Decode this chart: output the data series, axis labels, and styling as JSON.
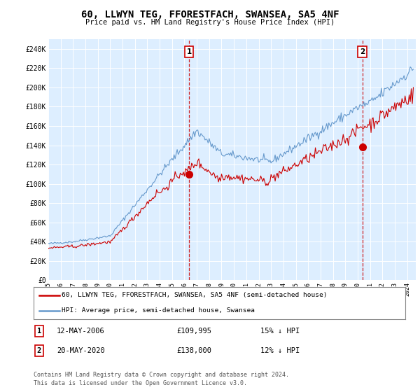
{
  "title": "60, LLWYN TEG, FFORESTFACH, SWANSEA, SA5 4NF",
  "subtitle": "Price paid vs. HM Land Registry's House Price Index (HPI)",
  "ylabel_ticks": [
    "£0",
    "£20K",
    "£40K",
    "£60K",
    "£80K",
    "£100K",
    "£120K",
    "£140K",
    "£160K",
    "£180K",
    "£200K",
    "£220K",
    "£240K"
  ],
  "ytick_values": [
    0,
    20000,
    40000,
    60000,
    80000,
    100000,
    120000,
    140000,
    160000,
    180000,
    200000,
    220000,
    240000
  ],
  "ylim": [
    0,
    250000
  ],
  "sale1_date": "12-MAY-2006",
  "sale1_price": 109995,
  "sale1_price_str": "£109,995",
  "sale1_label": "1",
  "sale1_pct": "15% ↓ HPI",
  "sale2_date": "20-MAY-2020",
  "sale2_label": "2",
  "sale2_price": 138000,
  "sale2_price_str": "£138,000",
  "sale2_pct": "12% ↓ HPI",
  "legend_line1": "60, LLWYN TEG, FFORESTFACH, SWANSEA, SA5 4NF (semi-detached house)",
  "legend_line2": "HPI: Average price, semi-detached house, Swansea",
  "footer1": "Contains HM Land Registry data © Crown copyright and database right 2024.",
  "footer2": "This data is licensed under the Open Government Licence v3.0.",
  "color_red": "#cc0000",
  "color_blue": "#6699cc",
  "bg_chart": "#ddeeff",
  "bg_figure": "#ffffff",
  "sale1_year": 2006.37,
  "sale2_year": 2020.38
}
